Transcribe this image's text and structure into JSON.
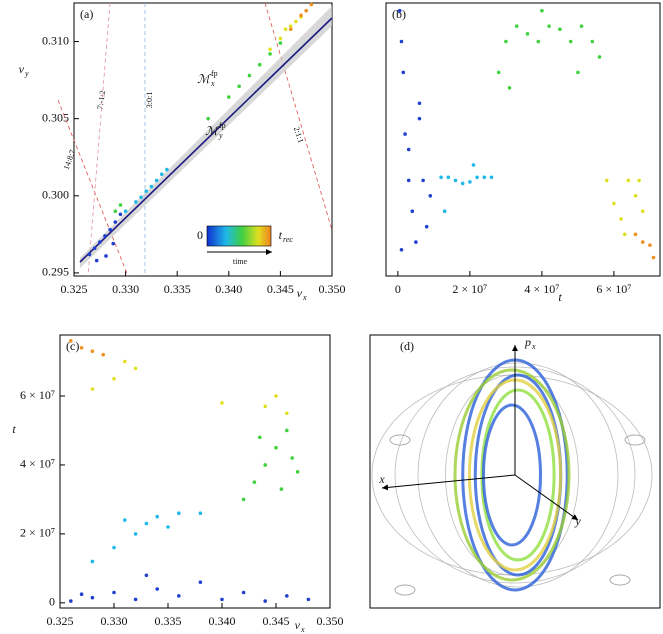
{
  "chart_data": [
    {
      "type": "scatter",
      "panel_label": "(a)",
      "xlabel": {
        "symbol": "ν",
        "sub": "x"
      },
      "ylabel": {
        "symbol": "ν",
        "sub": "y"
      },
      "xlim": [
        0.325,
        0.35
      ],
      "ylim": [
        0.2948,
        0.3125
      ],
      "xticks": [
        0.325,
        {
          "value": 0.33,
          "label": "0.330"
        },
        0.335,
        {
          "value": 0.34,
          "label": "0.340"
        },
        0.345,
        {
          "value": 0.35,
          "label": "0.350"
        }
      ],
      "yticks": [
        0.295,
        {
          "value": 0.3,
          "label": "0.300"
        },
        0.305,
        {
          "value": 0.31,
          "label": "0.310"
        }
      ],
      "resonances": [
        "14:8:7",
        "7:-1:2",
        "3:0:1",
        "2:1:1"
      ],
      "manifolds": [
        {
          "symbol": "ℳ",
          "sub": "x",
          "sup": "fp"
        },
        {
          "symbol": "ℳ",
          "sub": "y",
          "sup": "fp"
        }
      ],
      "colorbar": {
        "start": "0",
        "end": {
          "symbol": "t",
          "sub": "rec"
        },
        "arrow_label": "time"
      },
      "series": [
        {
          "color": "#2040d0",
          "x": [
            0.3265,
            0.327,
            0.3275,
            0.328,
            0.3285,
            0.329,
            0.3272,
            0.3288,
            0.3295,
            0.3281
          ],
          "y": [
            0.2962,
            0.2966,
            0.297,
            0.2974,
            0.2978,
            0.2983,
            0.2958,
            0.2969,
            0.2988,
            0.2961
          ]
        },
        {
          "color": "#20b8e8",
          "x": [
            0.33,
            0.331,
            0.332,
            0.333,
            0.3335,
            0.334,
            0.3325,
            0.3315
          ],
          "y": [
            0.299,
            0.2996,
            0.3003,
            0.301,
            0.3014,
            0.3017,
            0.3006,
            0.2999
          ]
        },
        {
          "color": "#40d040",
          "x": [
            0.329,
            0.3295,
            0.338,
            0.34,
            0.341,
            0.342,
            0.343,
            0.344,
            0.345
          ],
          "y": [
            0.299,
            0.2994,
            0.305,
            0.3064,
            0.3071,
            0.3078,
            0.3085,
            0.3092,
            0.3099
          ]
        },
        {
          "color": "#e0e020",
          "x": [
            0.344,
            0.345,
            0.346,
            0.347,
            0.3455,
            0.3465
          ],
          "y": [
            0.3095,
            0.3102,
            0.311,
            0.3116,
            0.3108,
            0.3113
          ]
        },
        {
          "color": "#f09020",
          "x": [
            0.346,
            0.347,
            0.3475,
            0.348
          ],
          "y": [
            0.3108,
            0.3117,
            0.312,
            0.3124
          ]
        }
      ]
    },
    {
      "type": "scatter",
      "panel_label": "(b)",
      "xlabel": "t",
      "xlim": [
        -3300000,
        72800000
      ],
      "ylim": [
        0.2948,
        0.3125
      ],
      "xticks": [
        0,
        {
          "value": 20000000,
          "label": "2 × 10⁷"
        },
        {
          "value": 40000000,
          "label": "4 × 10⁷"
        },
        {
          "value": 60000000,
          "label": "6 × 10⁷"
        }
      ],
      "series": [
        {
          "color": "#2040d0",
          "x": [
            500000,
            1000000,
            1500000,
            2000000,
            3000000,
            4000000,
            5000000,
            6000000,
            7000000,
            8000000,
            9000000,
            1000000,
            3000000,
            6000000
          ],
          "y": [
            0.312,
            0.31,
            0.308,
            0.304,
            0.301,
            0.299,
            0.297,
            0.305,
            0.301,
            0.298,
            0.3,
            0.2965,
            0.303,
            0.306
          ]
        },
        {
          "color": "#20b8e8",
          "x": [
            12000000,
            14000000,
            16000000,
            18000000,
            20000000,
            22000000,
            24000000,
            26000000,
            13000000,
            21000000
          ],
          "y": [
            0.3012,
            0.3012,
            0.301,
            0.3008,
            0.3009,
            0.3012,
            0.3012,
            0.3012,
            0.299,
            0.302
          ]
        },
        {
          "color": "#40d040",
          "x": [
            28000000,
            30000000,
            33000000,
            36000000,
            39000000,
            42000000,
            45000000,
            48000000,
            51000000,
            54000000,
            56000000,
            31000000,
            40000000,
            50000000
          ],
          "y": [
            0.308,
            0.31,
            0.311,
            0.3105,
            0.31,
            0.311,
            0.3108,
            0.31,
            0.311,
            0.31,
            0.309,
            0.307,
            0.312,
            0.308
          ]
        },
        {
          "color": "#e0e020",
          "x": [
            58000000,
            60000000,
            62000000,
            64000000,
            66000000,
            68000000,
            63000000,
            67000000
          ],
          "y": [
            0.301,
            0.2995,
            0.2985,
            0.301,
            0.3,
            0.299,
            0.2975,
            0.301
          ]
        },
        {
          "color": "#f09020",
          "x": [
            66000000,
            68000000,
            70000000,
            71000000
          ],
          "y": [
            0.2975,
            0.297,
            0.2968,
            0.296
          ]
        }
      ]
    },
    {
      "type": "scatter",
      "panel_label": "(c)",
      "xlabel": {
        "symbol": "ν",
        "sub": "x"
      },
      "ylabel": "t",
      "xlim": [
        0.325,
        0.35
      ],
      "ylim": [
        -1500000,
        77700000
      ],
      "xticks": [
        0.325,
        {
          "value": 0.33,
          "label": "0.330"
        },
        0.335,
        {
          "value": 0.34,
          "label": "0.340"
        },
        0.345,
        {
          "value": 0.35,
          "label": "0.350"
        }
      ],
      "yticks": [
        0,
        {
          "value": 20000000,
          "label": "2 × 10⁷"
        },
        {
          "value": 40000000,
          "label": "4 × 10⁷"
        },
        {
          "value": 60000000,
          "label": "6 × 10⁷"
        }
      ],
      "series": [
        {
          "color": "#2040d0",
          "x": [
            0.326,
            0.328,
            0.33,
            0.332,
            0.334,
            0.336,
            0.338,
            0.34,
            0.342,
            0.344,
            0.346,
            0.348,
            0.327,
            0.333
          ],
          "y": [
            500000,
            1500000,
            3000000,
            1000000,
            4000000,
            2000000,
            6000000,
            1000000,
            3000000,
            500000,
            2000000,
            1000000,
            2500000,
            8000000
          ]
        },
        {
          "color": "#20b8e8",
          "x": [
            0.328,
            0.33,
            0.332,
            0.333,
            0.334,
            0.336,
            0.338,
            0.331,
            0.335
          ],
          "y": [
            12000000,
            16000000,
            20000000,
            23000000,
            25000000,
            26000000,
            26000000,
            24000000,
            22000000
          ]
        },
        {
          "color": "#40d040",
          "x": [
            0.342,
            0.343,
            0.344,
            0.345,
            0.346,
            0.347,
            0.3435,
            0.3455,
            0.3465
          ],
          "y": [
            30000000,
            35000000,
            40000000,
            45000000,
            50000000,
            38000000,
            48000000,
            33000000,
            42000000
          ]
        },
        {
          "color": "#e0e020",
          "x": [
            0.328,
            0.33,
            0.332,
            0.34,
            0.344,
            0.346,
            0.331,
            0.345
          ],
          "y": [
            62000000,
            65000000,
            68000000,
            58000000,
            57000000,
            55000000,
            70000000,
            60000000
          ]
        },
        {
          "color": "#f09020",
          "x": [
            0.326,
            0.327,
            0.328,
            0.329
          ],
          "y": [
            76000000,
            74000000,
            73000000,
            72000000
          ]
        }
      ]
    },
    {
      "type": "phase-space",
      "panel_label": "(d)",
      "axis_labels": [
        {
          "symbol": "p",
          "sub": "x"
        },
        "x",
        "y"
      ]
    }
  ]
}
